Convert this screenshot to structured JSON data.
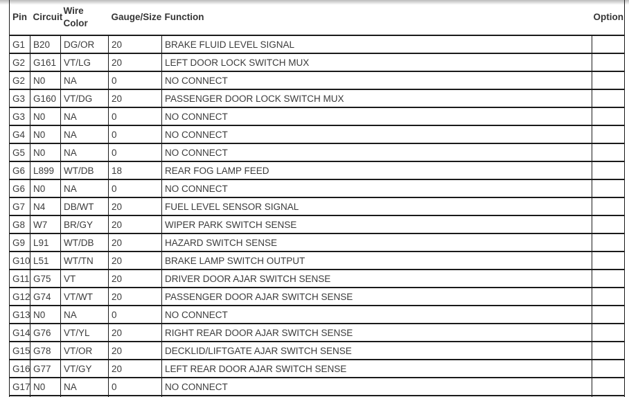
{
  "theme": {
    "background": "#ffffff",
    "border_color": "#1a1a1a",
    "text_color": "#3b3b3b",
    "header_text_color": "#353535"
  },
  "table": {
    "columns": [
      {
        "key": "pin",
        "label": "Pin"
      },
      {
        "key": "circuit",
        "label": "Circuit"
      },
      {
        "key": "wire_color",
        "label": "Wire Color"
      },
      {
        "key": "gauge_size",
        "label": "Gauge/Size"
      },
      {
        "key": "function",
        "label": "Function"
      },
      {
        "key": "option",
        "label": "Option"
      }
    ],
    "rows": [
      [
        "G1",
        "B20",
        "DG/OR",
        "20",
        "BRAKE FLUID LEVEL SIGNAL",
        ""
      ],
      [
        "G2",
        "G161",
        "VT/LG",
        "20",
        "LEFT DOOR LOCK SWITCH MUX",
        ""
      ],
      [
        "G2",
        "N0",
        "NA",
        "0",
        "NO CONNECT",
        ""
      ],
      [
        "G3",
        "G160",
        "VT/DG",
        "20",
        "PASSENGER DOOR LOCK SWITCH MUX",
        ""
      ],
      [
        "G3",
        "N0",
        "NA",
        "0",
        "NO CONNECT",
        ""
      ],
      [
        "G4",
        "N0",
        "NA",
        "0",
        "NO CONNECT",
        ""
      ],
      [
        "G5",
        "N0",
        "NA",
        "0",
        "NO CONNECT",
        ""
      ],
      [
        "G6",
        "L899",
        "WT/DB",
        "18",
        "REAR FOG LAMP FEED",
        ""
      ],
      [
        "G6",
        "N0",
        "NA",
        "0",
        "NO CONNECT",
        ""
      ],
      [
        "G7",
        "N4",
        "DB/WT",
        "20",
        "FUEL LEVEL SENSOR SIGNAL",
        ""
      ],
      [
        "G8",
        "W7",
        "BR/GY",
        "20",
        "WIPER PARK SWITCH SENSE",
        ""
      ],
      [
        "G9",
        "L91",
        "WT/DB",
        "20",
        "HAZARD SWITCH SENSE",
        ""
      ],
      [
        "G10",
        "L51",
        "WT/TN",
        "20",
        "BRAKE LAMP SWITCH OUTPUT",
        ""
      ],
      [
        "G11",
        "G75",
        "VT",
        "20",
        "DRIVER DOOR AJAR SWITCH SENSE",
        ""
      ],
      [
        "G12",
        "G74",
        "VT/WT",
        "20",
        "PASSENGER DOOR AJAR SWITCH SENSE",
        ""
      ],
      [
        "G13",
        "N0",
        "NA",
        "0",
        "NO CONNECT",
        ""
      ],
      [
        "G14",
        "G76",
        "VT/YL",
        "20",
        "RIGHT REAR DOOR AJAR SWITCH SENSE",
        ""
      ],
      [
        "G15",
        "G78",
        "VT/OR",
        "20",
        "DECKLID/LIFTGATE AJAR SWITCH SENSE",
        ""
      ],
      [
        "G16",
        "G77",
        "VT/GY",
        "20",
        "LEFT REAR DOOR AJAR SWITCH SENSE",
        ""
      ],
      [
        "G17",
        "N0",
        "NA",
        "0",
        "NO CONNECT",
        ""
      ]
    ],
    "partial_row": [
      "",
      "",
      "",
      "",
      "",
      ""
    ]
  }
}
